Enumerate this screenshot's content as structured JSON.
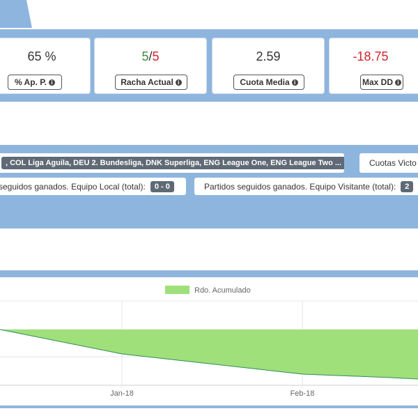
{
  "stats": [
    {
      "value": "65 %",
      "label": "% Ap. P."
    },
    {
      "value_part1": "5",
      "value_sep": "/",
      "value_part2": "5",
      "label": "Racha Actual"
    },
    {
      "value": "2.59",
      "label": "Cuota Media"
    },
    {
      "value": "-18.75",
      "label": "Max DD"
    }
  ],
  "filters": {
    "leagues_tag": ", COL Liga Aguila, DEU 2. Bundesliga, DNK Superliga, ENG League One, ENG League Two ...",
    "cuotas_label": "Cuotas Victo",
    "local_label": "seguidos ganados. Equipo Local (total):",
    "local_value": "0 - 0",
    "visitante_label": "Partidos seguidos ganados. Equipo Visitante (total):",
    "visitante_value": "2"
  },
  "chart_data": {
    "type": "area",
    "title": "",
    "xlabel": "",
    "ylabel": "",
    "legend": "top-center",
    "grid": true,
    "x_ticks": [
      "Jan-18",
      "Feb-18"
    ],
    "series": [
      {
        "name": "Rdo. Acumulado",
        "color": "#9fe07a",
        "line_color": "#2e8b57"
      }
    ]
  },
  "colors": {
    "accent_band": "#8eb5de",
    "negative": "#d2232a",
    "positive": "#3c8d3c",
    "area_fill": "#9fe07a"
  }
}
